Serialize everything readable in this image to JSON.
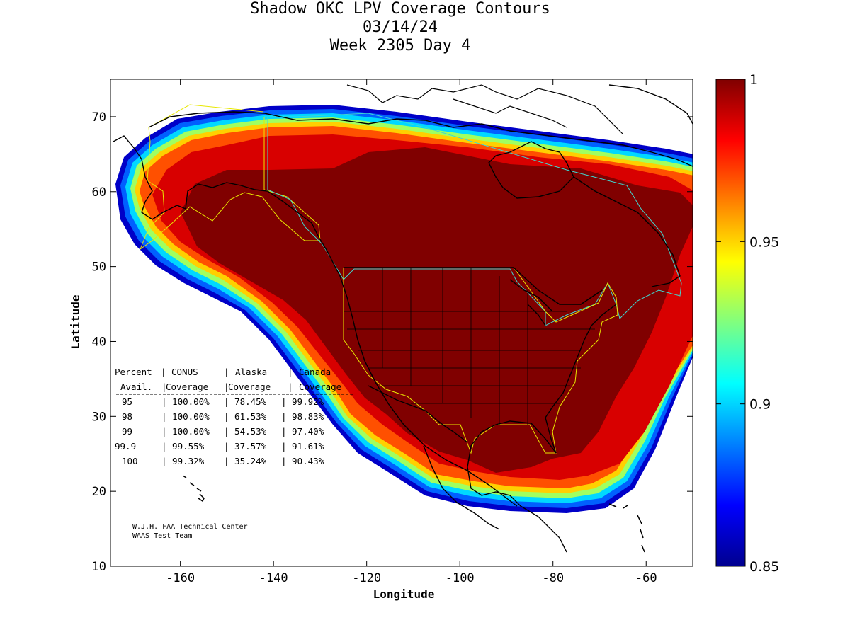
{
  "title": {
    "line1": "Shadow OKC LPV Coverage Contours",
    "line2": "03/14/24",
    "line3": "Week 2305 Day 4"
  },
  "axes": {
    "xlabel": "Longitude",
    "ylabel": "Latitude",
    "xlim": [
      -175,
      -50
    ],
    "ylim": [
      10,
      75
    ],
    "xticks": [
      -160,
      -140,
      -120,
      -100,
      -80,
      -60
    ],
    "yticks": [
      10,
      20,
      30,
      40,
      50,
      60,
      70
    ]
  },
  "colorbar": {
    "range": [
      0.85,
      1.0
    ],
    "ticks": [
      "1",
      "0.95",
      "0.9",
      "0.85"
    ],
    "tick_values": [
      1.0,
      0.95,
      0.9,
      0.85
    ],
    "colormap": "jet"
  },
  "coverage_table": {
    "header_row1": [
      "Percent",
      "CONUS",
      "Alaska",
      "Canada"
    ],
    "header_row2": [
      "Avail.",
      "Coverage",
      "Coverage",
      "Coverage"
    ],
    "rows": [
      [
        "95",
        "100.00%",
        "78.45%",
        "99.92%"
      ],
      [
        "98",
        "100.00%",
        "61.53%",
        "98.83%"
      ],
      [
        "99",
        "100.00%",
        "54.53%",
        "97.40%"
      ],
      [
        "99.9",
        "99.55%",
        "37.57%",
        "91.61%"
      ],
      [
        "100",
        "99.32%",
        "35.24%",
        "90.43%"
      ]
    ]
  },
  "credits": {
    "line1": "W.J.H. FAA Technical Center",
    "line2": "WAAS Test Team"
  },
  "colors": {
    "deep_red": "#800000",
    "border_yellow": "#ffff00",
    "border_cyan": "#40e0d0",
    "coast": "#000000"
  }
}
